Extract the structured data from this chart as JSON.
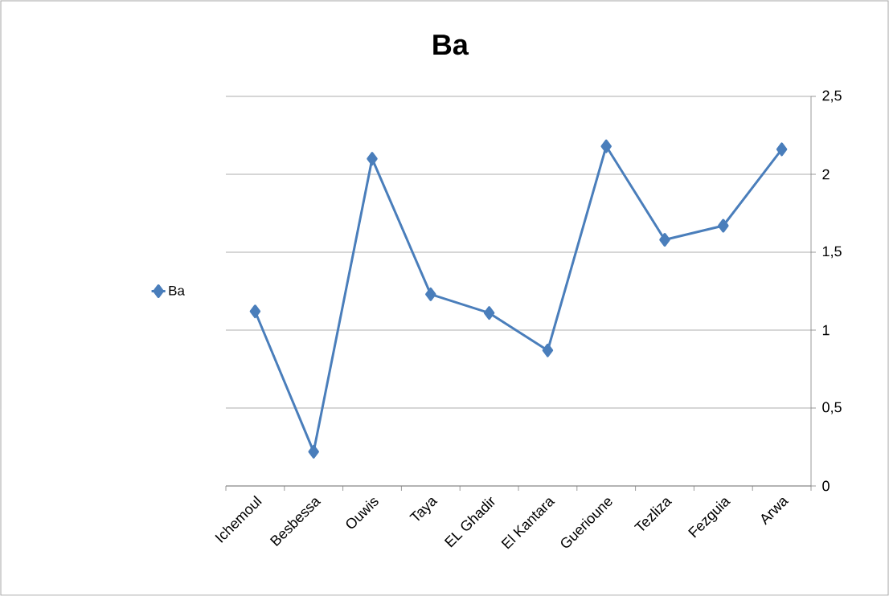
{
  "chart_data": {
    "type": "line",
    "title": "Ba",
    "categories": [
      "Ichemoul",
      "Besbessa",
      "Ouwis",
      "Taya",
      "EL Ghadir",
      "El Kantara",
      "Guerioune",
      "Tezliza",
      "Fezguia",
      "Arwa"
    ],
    "series": [
      {
        "name": "Ba",
        "color": "#4a7ebb",
        "values": [
          1.12,
          0.22,
          2.1,
          1.23,
          1.11,
          0.87,
          2.18,
          1.58,
          1.67,
          2.16
        ]
      }
    ],
    "ylim": [
      0,
      2.5
    ],
    "yticks": [
      0,
      {
        "value": 0.5,
        "label": "0,5"
      },
      1,
      {
        "value": 1.5,
        "label": "1,5"
      },
      2,
      {
        "value": 2.5,
        "label": "2,5"
      }
    ],
    "grid": "y",
    "legend": "left",
    "marker": "diamond",
    "line_style": "solid"
  }
}
